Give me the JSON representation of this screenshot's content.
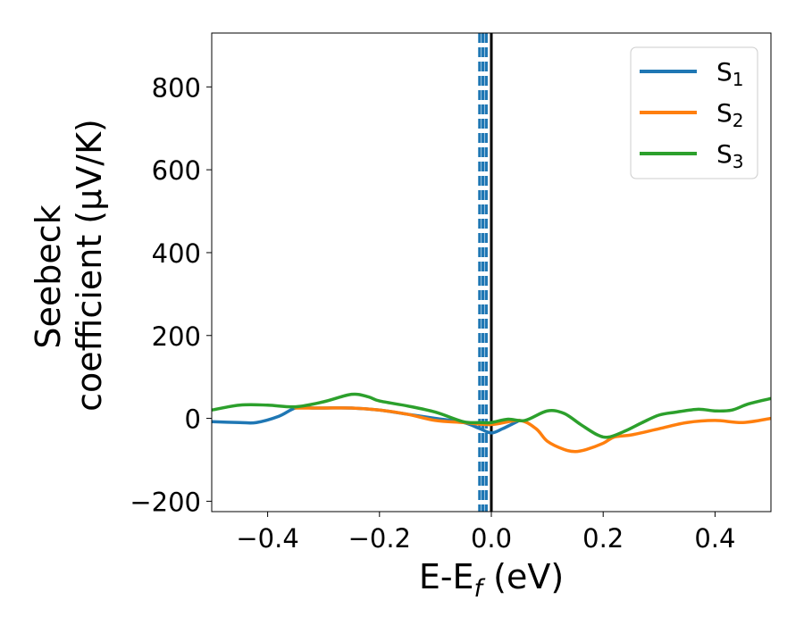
{
  "chart_data": {
    "type": "line",
    "title": "",
    "xlabel": {
      "main": "E-E",
      "sub": "f",
      "unit": " (eV)"
    },
    "ylabel": {
      "line1": "Seebeck",
      "line2": "coefficient  (μV/K)"
    },
    "xlim": [
      -0.5,
      0.5
    ],
    "ylim": [
      -225,
      930
    ],
    "xticks": [
      -0.4,
      -0.2,
      0.0,
      0.2,
      0.4
    ],
    "xtick_labels": [
      "−0.4",
      "−0.2",
      "0.0",
      "0.2",
      "0.4"
    ],
    "yticks": [
      -200,
      0,
      200,
      400,
      600,
      800
    ],
    "ytick_labels": [
      "−200",
      "0",
      "200",
      "400",
      "600",
      "800"
    ],
    "grid": false,
    "legend_position": "top-right",
    "vlines": [
      {
        "x": 0.0,
        "style": "solid",
        "color": "#000000"
      },
      {
        "x": -0.009,
        "style": "dashed",
        "color": "#1f77b4"
      },
      {
        "x": -0.015,
        "style": "dashed",
        "color": "#1f77b4"
      },
      {
        "x": -0.021,
        "style": "dashed",
        "color": "#1f77b4"
      }
    ],
    "series": [
      {
        "name": "S",
        "sub": "1",
        "color": "#1f77b4",
        "x": [
          -0.5,
          -0.45,
          -0.42,
          -0.38,
          -0.35,
          -0.32,
          -0.3,
          -0.25,
          -0.2,
          -0.15,
          -0.1,
          -0.05,
          -0.02,
          0.0,
          0.02,
          0.05
        ],
        "y": [
          -8,
          -10,
          -10,
          5,
          25,
          25,
          25,
          25,
          20,
          10,
          0,
          -10,
          -25,
          -35,
          -25,
          -5
        ]
      },
      {
        "name": "S",
        "sub": "2",
        "color": "#ff7f0e",
        "x": [
          -0.35,
          -0.3,
          -0.25,
          -0.2,
          -0.15,
          -0.1,
          -0.05,
          0.0,
          0.05,
          0.08,
          0.1,
          0.13,
          0.15,
          0.17,
          0.2,
          0.22,
          0.25,
          0.3,
          0.35,
          0.4,
          0.45,
          0.5
        ],
        "y": [
          25,
          25,
          25,
          20,
          10,
          -5,
          -10,
          -15,
          -5,
          -25,
          -55,
          -75,
          -80,
          -75,
          -60,
          -45,
          -40,
          -25,
          -10,
          -5,
          -10,
          0
        ]
      },
      {
        "name": "S",
        "sub": "3",
        "color": "#2ca02c",
        "x": [
          -0.5,
          -0.45,
          -0.4,
          -0.35,
          -0.3,
          -0.25,
          -0.22,
          -0.2,
          -0.15,
          -0.1,
          -0.05,
          -0.02,
          0.0,
          0.03,
          0.06,
          0.1,
          0.13,
          0.16,
          0.19,
          0.21,
          0.24,
          0.27,
          0.3,
          0.33,
          0.37,
          0.4,
          0.43,
          0.46,
          0.5
        ],
        "y": [
          20,
          32,
          32,
          28,
          40,
          58,
          52,
          42,
          30,
          15,
          -8,
          -10,
          -10,
          -2,
          -5,
          18,
          12,
          -15,
          -40,
          -45,
          -30,
          -10,
          8,
          15,
          22,
          18,
          20,
          35,
          48
        ]
      }
    ]
  }
}
